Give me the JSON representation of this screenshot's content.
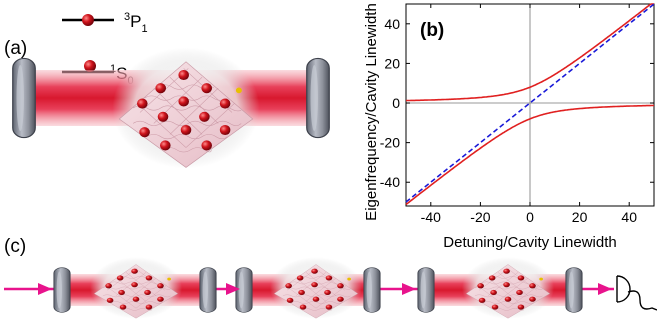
{
  "figure": {
    "panel_a_label": "(a)",
    "panel_b_label": "(b)",
    "panel_c_label": "(c)",
    "level_upper": {
      "sup": "3",
      "main": "P",
      "sub": "1"
    },
    "level_lower": {
      "sup": "1",
      "main": "S",
      "sub": "0"
    },
    "colors": {
      "beam": "#e0223a",
      "atom": "#c8101a",
      "mirror": "#8a8e98",
      "lattice": "#f2d6dc",
      "probe_arrow": "#e8138c",
      "curve": "#e02020",
      "asymptote": "#1a1ad8"
    }
  },
  "chart_data": {
    "type": "line",
    "title": "",
    "xlabel": "Detuning/Cavity Linewidth",
    "ylabel": "Eigenfrequency/Cavity Linewidth",
    "xlim": [
      -50,
      50
    ],
    "ylim": [
      -52,
      50
    ],
    "xticks": [
      -40,
      -20,
      0,
      20,
      40
    ],
    "yticks": [
      -40,
      -20,
      0,
      20,
      40
    ],
    "xtick_labels": [
      "-40",
      "-20",
      "0",
      "20",
      "40"
    ],
    "ytick_labels": [
      "-40",
      "-20",
      "0",
      "20",
      "40"
    ],
    "coupling_half_splitting": 8,
    "series": [
      {
        "style": "solid",
        "color": "#e02020",
        "x": [
          -50,
          -40,
          -30,
          -20,
          -10,
          -5,
          0,
          5,
          10,
          20,
          30,
          40,
          50
        ],
        "y": [
          1.3,
          1.6,
          2.1,
          3.1,
          5.4,
          6.9,
          8.0,
          9.4,
          12.8,
          23.1,
          32.1,
          41.6,
          51.3
        ]
      },
      {
        "style": "solid",
        "color": "#e02020",
        "x": [
          -50,
          -40,
          -30,
          -20,
          -10,
          -5,
          0,
          5,
          10,
          20,
          30,
          40,
          50
        ],
        "y": [
          -51.3,
          -41.6,
          -32.1,
          -23.1,
          -12.8,
          -9.4,
          -8.0,
          -6.9,
          -5.4,
          -3.1,
          -2.1,
          -1.6,
          -1.3
        ]
      },
      {
        "style": "dashed",
        "color": "#1a1ad8",
        "x": [
          -50,
          50
        ],
        "y": [
          -50,
          50
        ]
      }
    ]
  }
}
